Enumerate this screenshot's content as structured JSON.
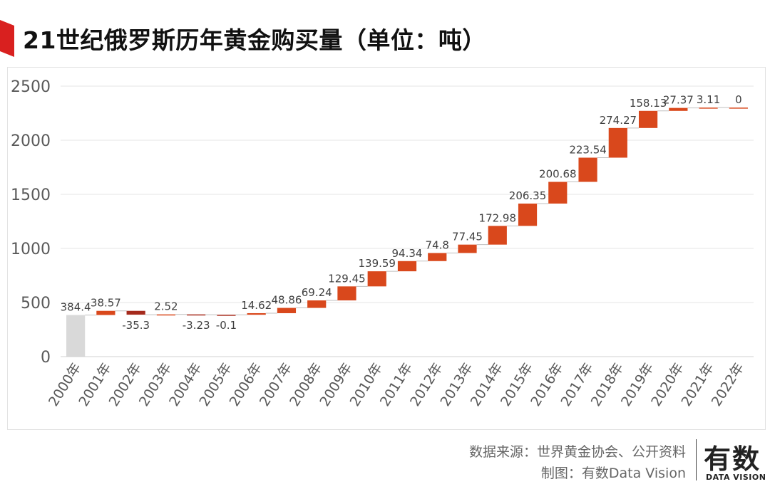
{
  "title": "21世纪俄罗斯历年黄金购买量（单位：吨）",
  "source": "数据来源：世界黄金协会、公开资料",
  "maker": "制图：有数Data Vision",
  "logo": {
    "main": "有数",
    "sub": "DATA VISION"
  },
  "colors": {
    "accent": "#d9201f",
    "increase": "#d9481c",
    "decrease": "#a52a1c",
    "total": "#d9d9d9",
    "grid": "#e6e6e6"
  },
  "chart_data": {
    "type": "bar",
    "subtype": "waterfall",
    "categories": [
      "2000年",
      "2001年",
      "2002年",
      "2003年",
      "2004年",
      "2005年",
      "2006年",
      "2007年",
      "2008年",
      "2009年",
      "2010年",
      "2011年",
      "2012年",
      "2013年",
      "2014年",
      "2015年",
      "2016年",
      "2017年",
      "2018年",
      "2019年",
      "2020年",
      "2021年",
      "2022年"
    ],
    "values": [
      384.4,
      38.57,
      -35.3,
      2.52,
      -3.23,
      -0.1,
      14.62,
      48.86,
      69.24,
      129.45,
      139.59,
      94.34,
      74.8,
      77.45,
      172.98,
      206.35,
      200.68,
      223.54,
      274.27,
      158.13,
      27.37,
      3.11,
      0
    ],
    "labels": [
      "384.4",
      "38.57",
      "-35.3",
      "2.52",
      "-3.23",
      "-0.1",
      "14.62",
      "48.86",
      "69.24",
      "129.45",
      "139.59",
      "94.34",
      "74.8",
      "77.45",
      "172.98",
      "206.35",
      "200.68",
      "223.54",
      "274.27",
      "158.13",
      "27.37",
      "3.11",
      "0"
    ],
    "yticks": [
      "0",
      "500",
      "1000",
      "1500",
      "2000",
      "2500"
    ],
    "ylim": [
      0,
      2500
    ],
    "grid": true,
    "legend": "none"
  }
}
